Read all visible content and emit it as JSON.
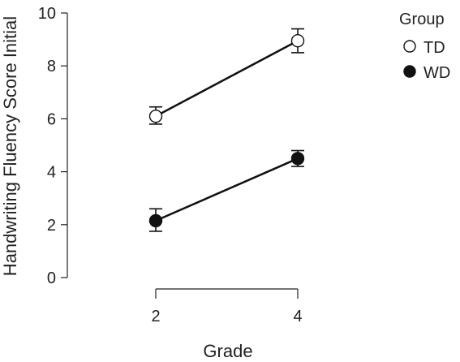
{
  "chart_data": {
    "type": "line",
    "title": "",
    "xlabel": "Grade",
    "ylabel": "Handwriting Fluency Score Initial",
    "x": [
      2,
      4
    ],
    "x_ticks": [
      "2",
      "4"
    ],
    "y_ticks": [
      "0",
      "2",
      "4",
      "6",
      "8",
      "10"
    ],
    "ylim": [
      0,
      10
    ],
    "grid": false,
    "legend": {
      "title": "Group",
      "placement": "top-right"
    },
    "series": [
      {
        "name": "TD",
        "marker": "open-circle",
        "values": [
          6.1,
          8.95
        ],
        "error_low": [
          5.8,
          8.5
        ],
        "error_high": [
          6.45,
          9.4
        ]
      },
      {
        "name": "WD",
        "marker": "filled-circle",
        "values": [
          2.15,
          4.5
        ],
        "error_low": [
          1.75,
          4.2
        ],
        "error_high": [
          2.6,
          4.8
        ]
      }
    ]
  },
  "colors": {
    "axis": "#222222",
    "line": "#111111",
    "marker_fill_filled": "#111111",
    "marker_fill_open": "#ffffff"
  }
}
